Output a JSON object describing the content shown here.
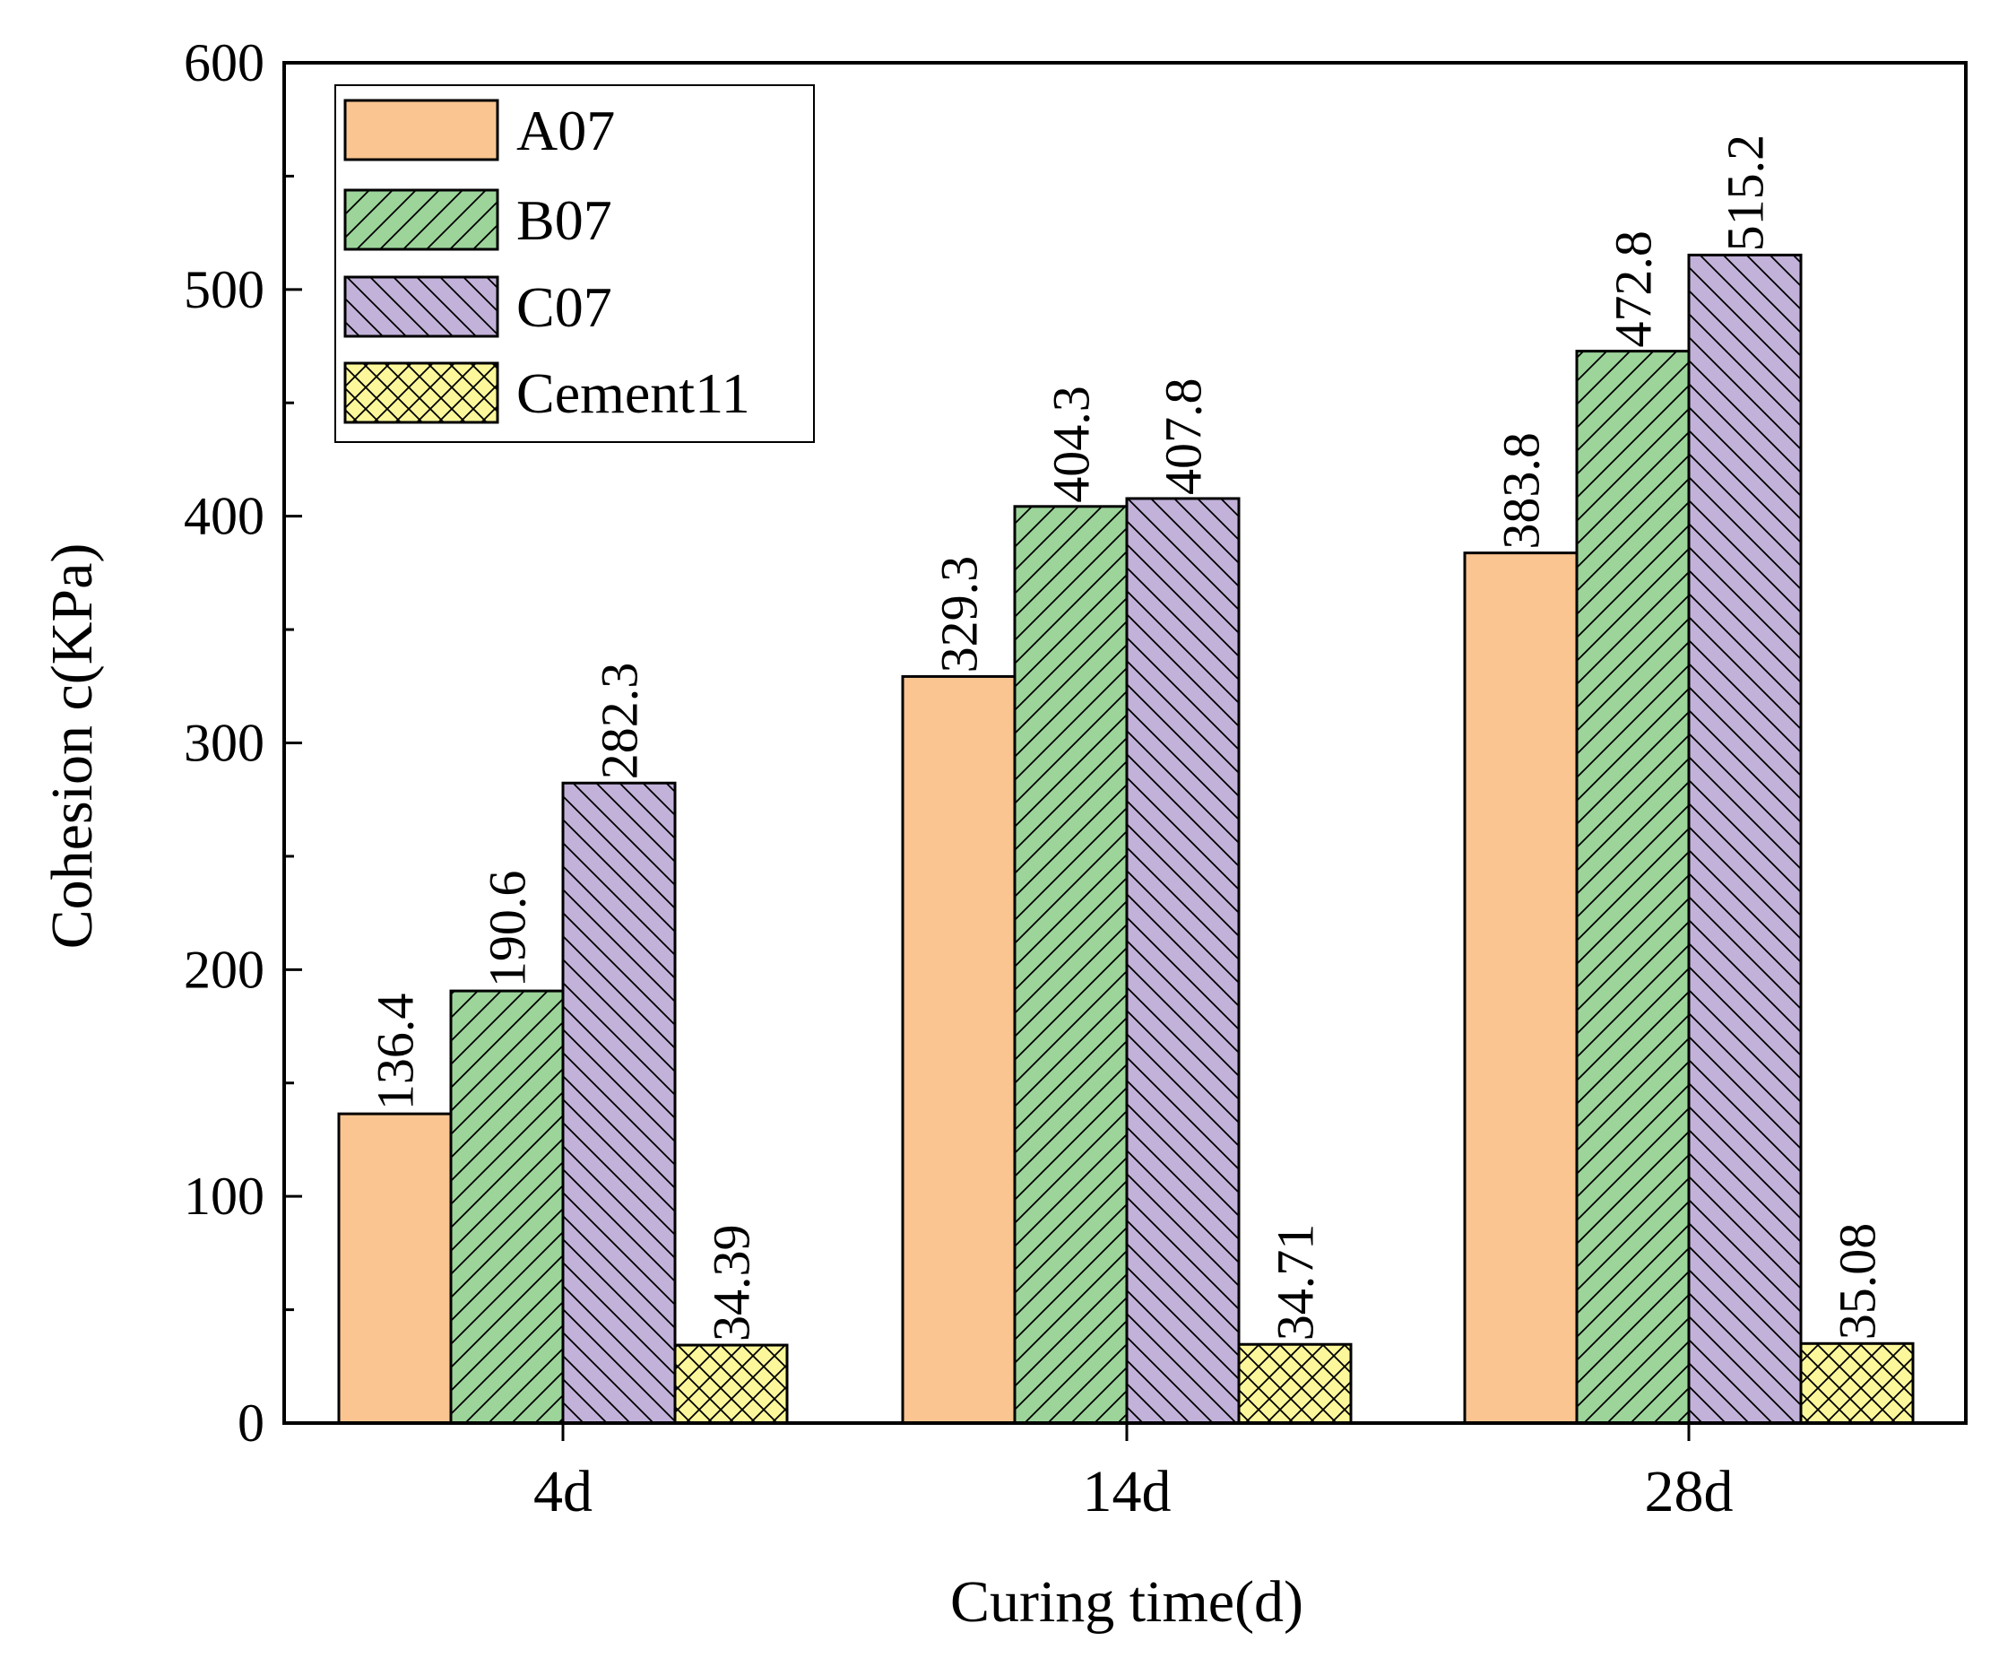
{
  "chart_data": {
    "type": "bar",
    "title": "",
    "xlabel": "Curing time(d)",
    "ylabel": "Cohesion c(KPa)",
    "ylim": [
      0,
      600
    ],
    "yticks": [
      0,
      100,
      200,
      300,
      400,
      500,
      600
    ],
    "categories": [
      "4d",
      "14d",
      "28d"
    ],
    "series": [
      {
        "name": "A07",
        "values": [
          136.4,
          329.3,
          383.8
        ],
        "labels": [
          "136.4",
          "329.3",
          "383.8"
        ],
        "color": "#FAC590",
        "pattern": "none"
      },
      {
        "name": "B07",
        "values": [
          190.6,
          404.3,
          472.8
        ],
        "labels": [
          "190.6",
          "404.3",
          "472.8"
        ],
        "color": "#9CD49A",
        "pattern": "diag-up"
      },
      {
        "name": "C07",
        "values": [
          282.3,
          407.8,
          515.2
        ],
        "labels": [
          "282.3",
          "407.8",
          "515.2"
        ],
        "color": "#C2B2D9",
        "pattern": "diag-down"
      },
      {
        "name": "Cement11",
        "values": [
          34.39,
          34.71,
          35.08
        ],
        "labels": [
          "34.39",
          "34.71",
          "35.08"
        ],
        "color": "#FCF79A",
        "pattern": "cross"
      }
    ],
    "legend_position": "top-left",
    "grid": false
  }
}
